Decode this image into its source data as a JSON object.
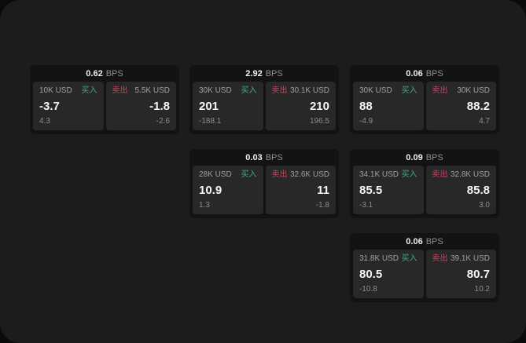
{
  "theme": {
    "buy_green": "#3fae7c",
    "sell_red": "#c8455c",
    "panel_bg": "#1c1c1c",
    "card_bg": "#131313",
    "tile_bg": "#282828"
  },
  "cards": [
    {
      "bps": "0.62",
      "unit": "BPS",
      "buy": {
        "amount": "10K USD",
        "label": "买入",
        "value": "-3.7",
        "sub": "4.3"
      },
      "sell": {
        "label": "卖出",
        "amount": "5.5K USD",
        "value": "-1.8",
        "sub": "-2.6"
      }
    },
    {
      "bps": "2.92",
      "unit": "BPS",
      "buy": {
        "amount": "30K USD",
        "label": "买入",
        "value": "201",
        "sub": "-188.1"
      },
      "sell": {
        "label": "卖出",
        "amount": "30.1K USD",
        "value": "210",
        "sub": "196.5"
      }
    },
    {
      "bps": "0.06",
      "unit": "BPS",
      "buy": {
        "amount": "30K USD",
        "label": "买入",
        "value": "88",
        "sub": "-4.9"
      },
      "sell": {
        "label": "卖出",
        "amount": "30K USD",
        "value": "88.2",
        "sub": "4.7"
      }
    },
    {
      "bps": "0.03",
      "unit": "BPS",
      "buy": {
        "amount": "28K USD",
        "label": "买入",
        "value": "10.9",
        "sub": "1.3"
      },
      "sell": {
        "label": "卖出",
        "amount": "32.6K USD",
        "value": "11",
        "sub": "-1.8"
      }
    },
    {
      "bps": "0.09",
      "unit": "BPS",
      "buy": {
        "amount": "34.1K USD",
        "label": "买入",
        "value": "85.5",
        "sub": "-3.1"
      },
      "sell": {
        "label": "卖出",
        "amount": "32.8K USD",
        "value": "85.8",
        "sub": "3.0"
      }
    },
    {
      "bps": "0.06",
      "unit": "BPS",
      "buy": {
        "amount": "31.8K USD",
        "label": "买入",
        "value": "80.5",
        "sub": "-10.8"
      },
      "sell": {
        "label": "卖出",
        "amount": "39.1K USD",
        "value": "80.7",
        "sub": "10.2"
      }
    }
  ]
}
